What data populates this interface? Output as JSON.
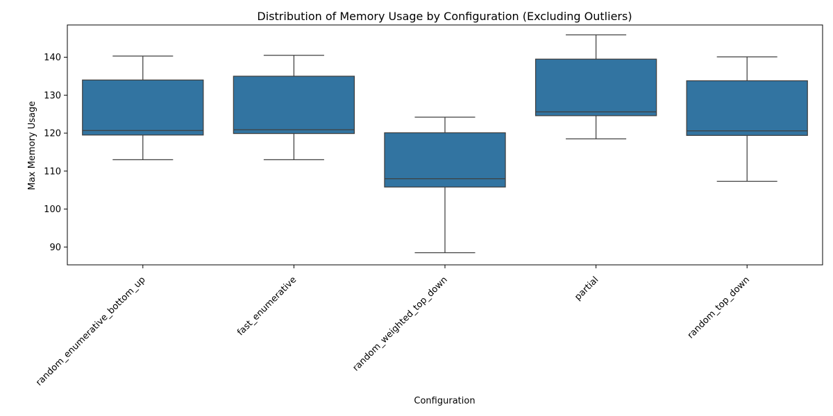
{
  "chart_data": {
    "type": "box",
    "title": "Distribution of Memory Usage by Configuration (Excluding Outliers)",
    "xlabel": "Configuration",
    "ylabel": "Max Memory Usage",
    "ylim": [
      85.3,
      148.5
    ],
    "yticks": [
      90,
      100,
      110,
      120,
      130,
      140
    ],
    "grid": false,
    "legend": false,
    "colors": {
      "box_fill": "#3274a1",
      "line": "#3f3f3f",
      "axis": "#000000",
      "background": "#ffffff"
    },
    "categories": [
      "random_enumerative_bottom_up",
      "fast_enumerative",
      "random_weighted_top_down",
      "partial",
      "random_top_down"
    ],
    "boxes": [
      {
        "min": 113.0,
        "q1": 119.5,
        "median": 120.7,
        "q3": 134.0,
        "max": 140.3
      },
      {
        "min": 113.0,
        "q1": 119.9,
        "median": 120.9,
        "q3": 135.0,
        "max": 140.5
      },
      {
        "min": 88.5,
        "q1": 105.8,
        "median": 108.0,
        "q3": 120.1,
        "max": 124.2
      },
      {
        "min": 118.5,
        "q1": 124.6,
        "median": 125.6,
        "q3": 139.5,
        "max": 145.9
      },
      {
        "min": 107.3,
        "q1": 119.4,
        "median": 120.6,
        "q3": 133.8,
        "max": 140.1
      }
    ]
  }
}
